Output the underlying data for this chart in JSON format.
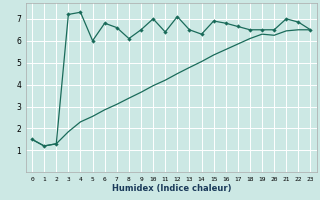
{
  "title": "",
  "xlabel": "Humidex (Indice chaleur)",
  "bg_color": "#cce8e4",
  "grid_color": "#ffffff",
  "line_color": "#1a6b5a",
  "xlim": [
    -0.5,
    23.5
  ],
  "ylim": [
    0,
    7.7
  ],
  "yticks": [
    1,
    2,
    3,
    4,
    5,
    6,
    7
  ],
  "xticks": [
    0,
    1,
    2,
    3,
    4,
    5,
    6,
    7,
    8,
    9,
    10,
    11,
    12,
    13,
    14,
    15,
    16,
    17,
    18,
    19,
    20,
    21,
    22,
    23
  ],
  "line1_x": [
    0,
    1,
    2,
    3,
    4,
    5,
    6,
    7,
    8,
    9,
    10,
    11,
    12,
    13,
    14,
    15,
    16,
    17,
    18,
    19,
    20,
    21,
    22,
    23
  ],
  "line1_y": [
    1.5,
    1.2,
    1.3,
    7.2,
    7.3,
    6.0,
    6.8,
    6.6,
    6.1,
    6.5,
    7.0,
    6.4,
    7.1,
    6.5,
    6.3,
    6.9,
    6.8,
    6.65,
    6.5,
    6.5,
    6.5,
    7.0,
    6.85,
    6.5
  ],
  "line2_x": [
    0,
    1,
    2,
    3,
    4,
    5,
    6,
    7,
    8,
    9,
    10,
    11,
    12,
    13,
    14,
    15,
    16,
    17,
    18,
    19,
    20,
    21,
    22,
    23
  ],
  "line2_y": [
    1.5,
    1.2,
    1.3,
    1.85,
    2.3,
    2.55,
    2.85,
    3.1,
    3.38,
    3.65,
    3.95,
    4.2,
    4.5,
    4.78,
    5.05,
    5.35,
    5.6,
    5.85,
    6.1,
    6.3,
    6.25,
    6.45,
    6.5,
    6.5
  ],
  "xlabel_color": "#1a3a5a",
  "xlabel_fontsize": 6.0,
  "tick_fontsize": 4.5,
  "ytick_fontsize": 5.5
}
